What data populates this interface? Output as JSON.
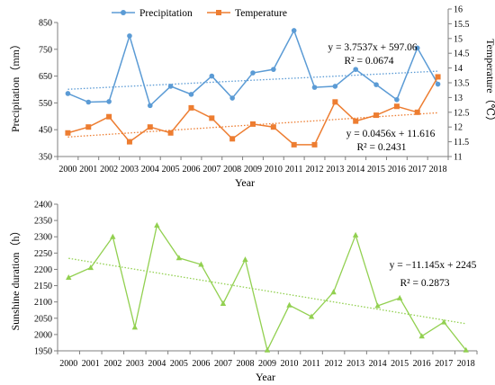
{
  "chart_data": [
    {
      "type": "line",
      "x": [
        "2000",
        "2001",
        "2002",
        "2003",
        "2004",
        "2005",
        "2006",
        "2007",
        "2008",
        "2009",
        "2010",
        "2011",
        "2012",
        "2013",
        "2014",
        "2015",
        "2016",
        "2017",
        "2018"
      ],
      "xlabel": "Year",
      "ylabel_left": "Precipitation（mm）",
      "ylabel_right": "Temperature（℃）",
      "ylim_left": [
        350,
        850
      ],
      "yticks_left": [
        350,
        450,
        550,
        650,
        750,
        850
      ],
      "ylim_right": [
        11,
        16
      ],
      "yticks_right": [
        11,
        11.5,
        12,
        12.5,
        13,
        13.5,
        14,
        14.5,
        15,
        15.5,
        16
      ],
      "grid": false,
      "legend": "top",
      "series": [
        {
          "name": "Precipitation",
          "axis": "left",
          "color": "#5b9bd5",
          "marker": "circle",
          "values": [
            585,
            553,
            555,
            800,
            540,
            612,
            582,
            650,
            568,
            662,
            675,
            820,
            608,
            612,
            675,
            618,
            562,
            755,
            620
          ],
          "trendline": {
            "slope": 3.7537,
            "intercept": 597.06,
            "equation": "y = 3.7537x + 597.06",
            "r2": "R² = 0.0674"
          }
        },
        {
          "name": "Temperature",
          "axis": "right",
          "color": "#ed7d31",
          "marker": "square",
          "values": [
            11.8,
            12.0,
            12.35,
            11.5,
            12.0,
            11.8,
            12.65,
            12.3,
            11.6,
            12.1,
            12.0,
            11.4,
            11.4,
            12.85,
            12.2,
            12.4,
            12.7,
            12.5,
            13.7
          ],
          "trendline": {
            "slope": 0.0456,
            "intercept": 11.616,
            "equation": "y = 0.0456x + 11.616",
            "r2": "R² = 0.2431"
          }
        }
      ]
    },
    {
      "type": "line",
      "x": [
        "2000",
        "2001",
        "2002",
        "2003",
        "2004",
        "2005",
        "2006",
        "2007",
        "2008",
        "2009",
        "2010",
        "2011",
        "2012",
        "2013",
        "2014",
        "2015",
        "2016",
        "2017",
        "2018"
      ],
      "xlabel": "Year",
      "ylabel": "Sunshine duration（h）",
      "ylim": [
        1950,
        2400
      ],
      "yticks": [
        1950,
        2000,
        2050,
        2100,
        2150,
        2200,
        2250,
        2300,
        2350,
        2400
      ],
      "grid": false,
      "series": [
        {
          "color": "#92d050",
          "marker": "triangle",
          "values": [
            2175,
            2205,
            2300,
            2022,
            2335,
            2235,
            2215,
            2095,
            2230,
            1952,
            2090,
            2055,
            2130,
            2305,
            2088,
            2112,
            1995,
            2038,
            1952
          ],
          "trendline": {
            "slope": -11.145,
            "intercept": 2245,
            "equation": "y = −11.145x + 2245",
            "r2": "R² = 0.2873"
          }
        }
      ]
    }
  ]
}
